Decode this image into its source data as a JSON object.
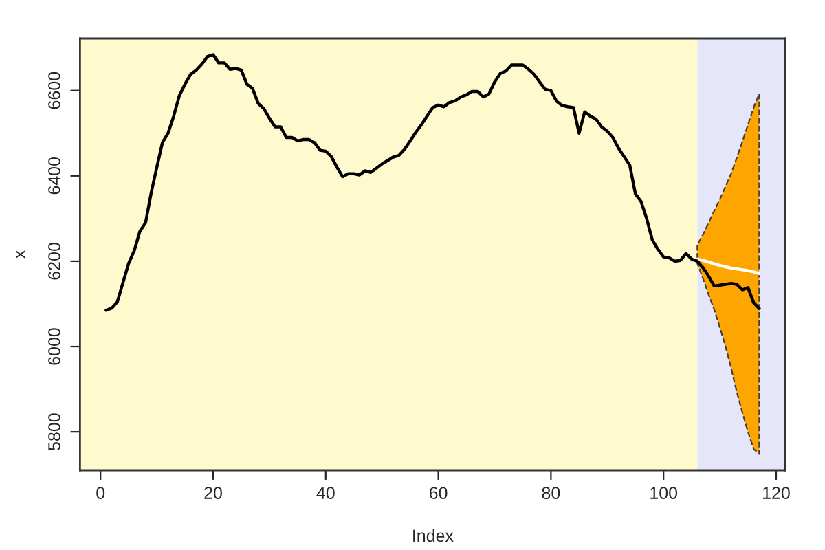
{
  "chart_data": {
    "type": "line",
    "xlabel": "Index",
    "ylabel": "x",
    "xlim": [
      -3.64,
      121.64
    ],
    "ylim": [
      5710,
      6722
    ],
    "xticks": [
      0,
      20,
      40,
      60,
      80,
      100,
      120
    ],
    "yticks": [
      5800,
      6000,
      6200,
      6400,
      6600
    ],
    "grid": false,
    "legend": false,
    "bands": [
      {
        "axis": "x",
        "from": -3.64,
        "to": 106,
        "color": "#fffacd"
      },
      {
        "axis": "x",
        "from": 106,
        "to": 121.64,
        "color": "#e6e6fa"
      }
    ],
    "series": [
      {
        "color": "#ffffff",
        "x": [
          106,
          107,
          108,
          109,
          110,
          111,
          112,
          113,
          114,
          115,
          116,
          117
        ],
        "values": [
          6205,
          6202,
          6198,
          6194,
          6190,
          6187,
          6184,
          6182,
          6180,
          6178,
          6175,
          6171
        ],
        "lower": [
          6195,
          6160,
          6122,
          6087,
          6045,
          6001,
          5950,
          5894,
          5845,
          5800,
          5760,
          5748
        ],
        "upper": [
          6238,
          6262,
          6290,
          6318,
          6345,
          6375,
          6405,
          6442,
          6480,
          6520,
          6560,
          6593
        ]
      },
      {
        "color": "#000000",
        "x": [
          1,
          2,
          3,
          4,
          5,
          6,
          7,
          8,
          9,
          10,
          11,
          12,
          13,
          14,
          15,
          16,
          17,
          18,
          19,
          20,
          21,
          22,
          23,
          24,
          25,
          26,
          27,
          28,
          29,
          30,
          31,
          32,
          33,
          34,
          35,
          36,
          37,
          38,
          39,
          40,
          41,
          42,
          43,
          44,
          45,
          46,
          47,
          48,
          49,
          50,
          51,
          52,
          53,
          54,
          55,
          56,
          57,
          58,
          59,
          60,
          61,
          62,
          63,
          64,
          65,
          66,
          67,
          68,
          69,
          70,
          71,
          72,
          73,
          74,
          75,
          76,
          77,
          78,
          79,
          80,
          81,
          82,
          83,
          84,
          85,
          86,
          87,
          88,
          89,
          90,
          91,
          92,
          93,
          94,
          95,
          96,
          97,
          98,
          99,
          100,
          101,
          102,
          103,
          104,
          105,
          106,
          107,
          108,
          109,
          110,
          111,
          112,
          113,
          114,
          115,
          116,
          117
        ],
        "values": [
          6085,
          6090,
          6105,
          6150,
          6195,
          6225,
          6270,
          6290,
          6360,
          6420,
          6478,
          6500,
          6540,
          6588,
          6615,
          6638,
          6648,
          6662,
          6680,
          6684,
          6665,
          6665,
          6650,
          6652,
          6648,
          6615,
          6605,
          6570,
          6558,
          6535,
          6515,
          6515,
          6490,
          6490,
          6482,
          6485,
          6485,
          6478,
          6460,
          6458,
          6445,
          6420,
          6398,
          6405,
          6405,
          6402,
          6412,
          6408,
          6418,
          6428,
          6436,
          6444,
          6448,
          6462,
          6482,
          6502,
          6520,
          6540,
          6560,
          6566,
          6562,
          6572,
          6576,
          6585,
          6590,
          6598,
          6598,
          6585,
          6592,
          6620,
          6640,
          6646,
          6660,
          6660,
          6660,
          6650,
          6638,
          6620,
          6603,
          6600,
          6575,
          6565,
          6562,
          6560,
          6500,
          6550,
          6540,
          6533,
          6515,
          6505,
          6490,
          6465,
          6445,
          6425,
          6358,
          6340,
          6300,
          6250,
          6228,
          6210,
          6208,
          6200,
          6202,
          6218,
          6205,
          6200,
          6185,
          6165,
          6142,
          6144,
          6146,
          6148,
          6146,
          6133,
          6138,
          6103,
          6089
        ]
      }
    ]
  }
}
